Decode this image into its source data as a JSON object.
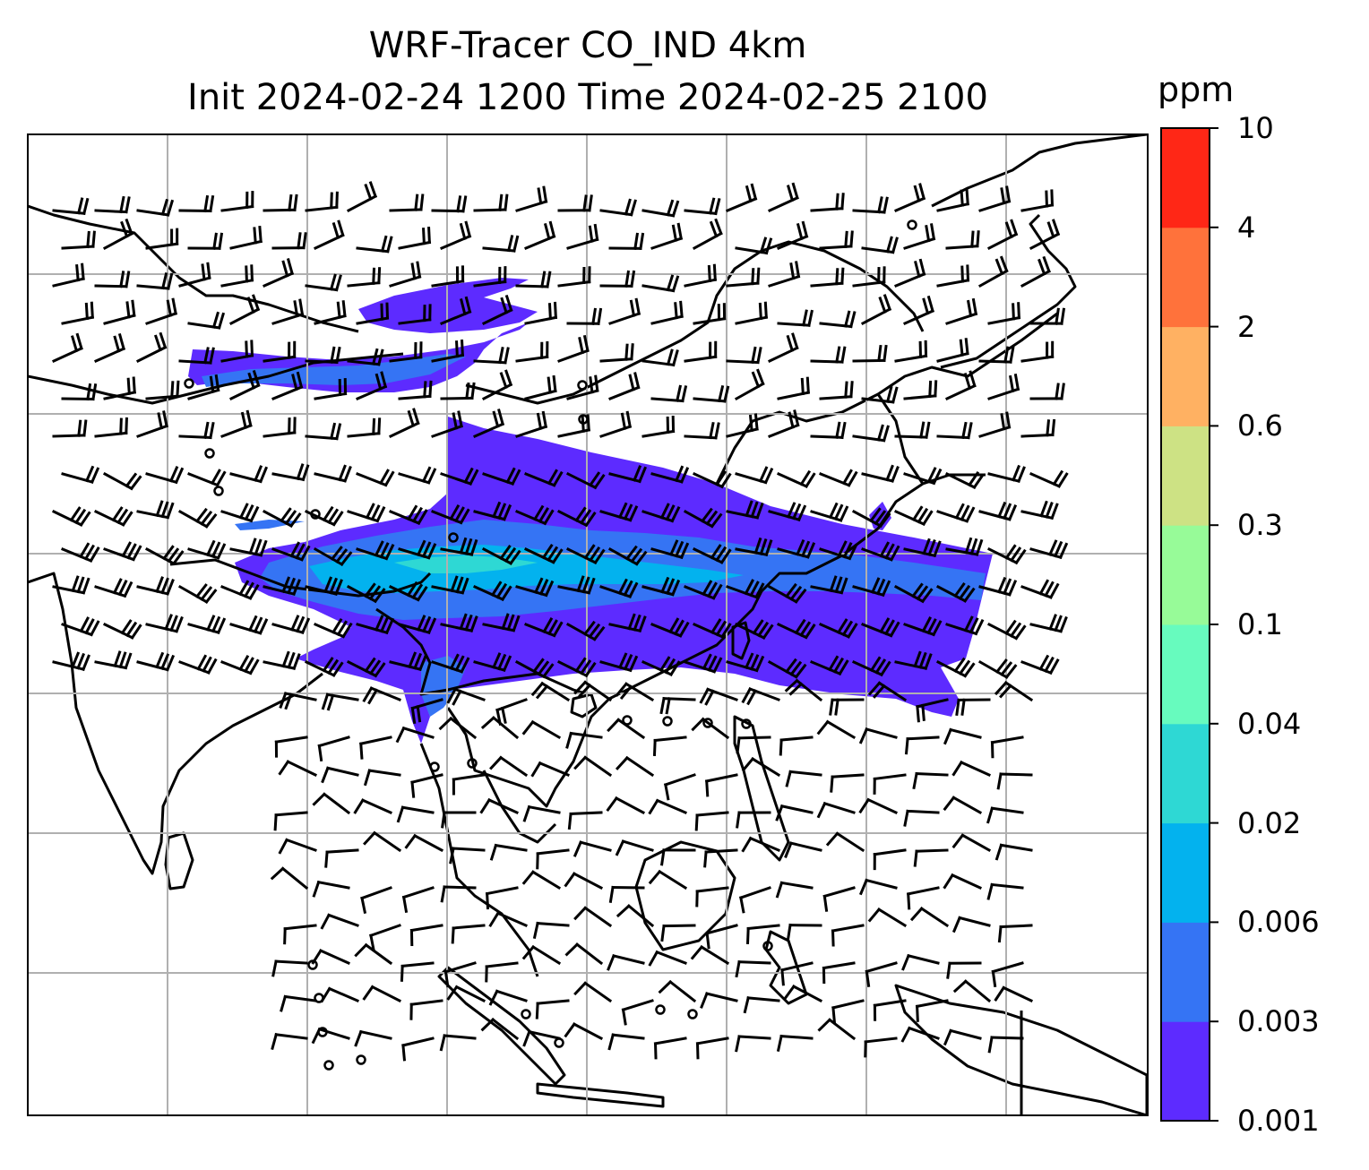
{
  "title_line1": "WRF-Tracer CO_IND 4km",
  "title_line2": "Init 2024-02-24 1200 Time 2024-02-25 2100",
  "colorbar": {
    "unit": "ppm",
    "tick_labels": [
      "0.001",
      "0.003",
      "0.006",
      "0.02",
      "0.04",
      "0.1",
      "0.3",
      "0.6",
      "2",
      "4",
      "10"
    ],
    "colors": [
      "#5d2bff",
      "#3574f4",
      "#03b2ee",
      "#2ed8d4",
      "#67fbbe",
      "#97fb98",
      "#cde284",
      "#ffb162",
      "#ff723b",
      "#ff2716"
    ]
  },
  "map": {
    "field": "CO_IND tracer",
    "gridlines": true,
    "wind_barbs": true,
    "coastlines": true
  }
}
